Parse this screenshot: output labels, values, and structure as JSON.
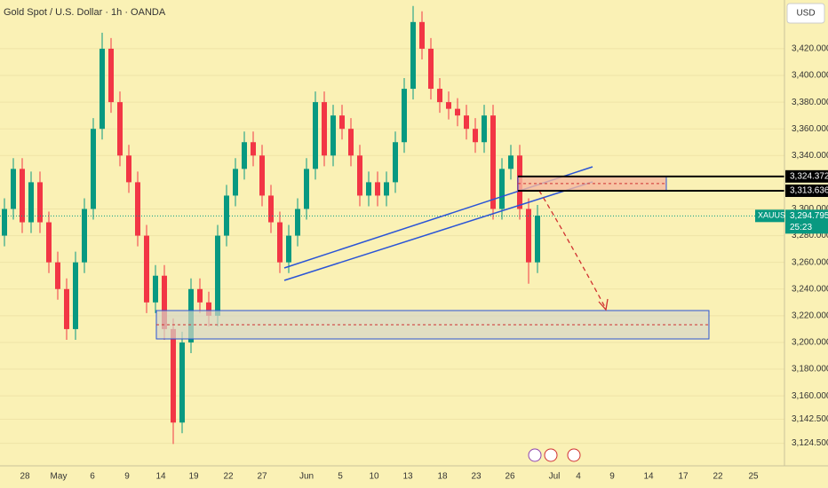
{
  "chart_data": {
    "type": "candlestick",
    "title": "Gold Spot / U.S. Dollar · 1h · OANDA",
    "currency": "USD",
    "symbol": "XAUUSD",
    "countdown": "25:23",
    "last_price": {
      "value": 3294.795,
      "label": "3,294.795"
    },
    "levels": [
      {
        "value": 3324.372,
        "label": "3,324.372"
      },
      {
        "value": 3313.636,
        "label": "3,313.636"
      }
    ],
    "up_color": "#089981",
    "down_color": "#f23645",
    "ylim": [
      3107.6,
      3456.5
    ],
    "yticks": [
      {
        "value": 3124.5,
        "label": "3,124.500"
      },
      {
        "value": 3142.5,
        "label": "3,142.500"
      },
      {
        "value": 3160,
        "label": "3,160.000"
      },
      {
        "value": 3180,
        "label": "3,180.000"
      },
      {
        "value": 3200,
        "label": "3,200.000"
      },
      {
        "value": 3220,
        "label": "3,220.000"
      },
      {
        "value": 3240,
        "label": "3,240.000"
      },
      {
        "value": 3260,
        "label": "3,260.000"
      },
      {
        "value": 3280,
        "label": "3,280.000"
      },
      {
        "value": 3300,
        "label": "3,300.000"
      },
      {
        "value": 3340,
        "label": "3,340.000"
      },
      {
        "value": 3360,
        "label": "3,360.000"
      },
      {
        "value": 3380,
        "label": "3,380.000"
      },
      {
        "value": 3400,
        "label": "3,400.000"
      },
      {
        "value": 3420,
        "label": "3,420.000"
      }
    ],
    "xlabels": [
      "28",
      "May",
      "6",
      "9",
      "14",
      "19",
      "22",
      "27",
      "Jun",
      "5",
      "10",
      "13",
      "18",
      "23",
      "26",
      "Jul",
      "4",
      "9",
      "14",
      "17",
      "22",
      "25"
    ],
    "open": [
      3280,
      3300,
      3330,
      3290,
      3320,
      3290,
      3260,
      3240,
      3210,
      3260,
      3300,
      3360,
      3420,
      3380,
      3340,
      3320,
      3280,
      3230,
      3250,
      3210,
      3140,
      3200,
      3240,
      3230,
      3220,
      3280,
      3310,
      3330,
      3350,
      3340,
      3310,
      3290,
      3260,
      3280,
      3300,
      3330,
      3380,
      3340,
      3370,
      3360,
      3340,
      3310,
      3320,
      3310,
      3320,
      3350,
      3390,
      3440,
      3420,
      3390,
      3380,
      3375,
      3370,
      3360,
      3350,
      3370,
      3300,
      3330,
      3340,
      3300,
      3260
    ],
    "high": [
      3308,
      3338,
      3338,
      3328,
      3328,
      3298,
      3268,
      3248,
      3268,
      3308,
      3368,
      3432,
      3428,
      3388,
      3348,
      3328,
      3288,
      3258,
      3258,
      3218,
      3208,
      3248,
      3248,
      3238,
      3288,
      3318,
      3338,
      3358,
      3358,
      3348,
      3318,
      3298,
      3288,
      3308,
      3338,
      3388,
      3388,
      3378,
      3378,
      3368,
      3348,
      3328,
      3328,
      3328,
      3358,
      3398,
      3452,
      3448,
      3428,
      3398,
      3388,
      3383,
      3378,
      3368,
      3378,
      3378,
      3338,
      3348,
      3348,
      3308,
      3303
    ],
    "low": [
      3272,
      3292,
      3282,
      3282,
      3282,
      3252,
      3232,
      3202,
      3202,
      3252,
      3292,
      3352,
      3372,
      3332,
      3312,
      3272,
      3222,
      3222,
      3202,
      3124,
      3132,
      3192,
      3222,
      3212,
      3212,
      3272,
      3302,
      3322,
      3332,
      3302,
      3282,
      3252,
      3252,
      3272,
      3292,
      3322,
      3332,
      3332,
      3352,
      3332,
      3302,
      3302,
      3302,
      3302,
      3312,
      3342,
      3382,
      3412,
      3382,
      3372,
      3367,
      3362,
      3352,
      3342,
      3342,
      3292,
      3292,
      3322,
      3292,
      3244,
      3252
    ],
    "close": [
      3300,
      3330,
      3290,
      3320,
      3290,
      3260,
      3240,
      3210,
      3260,
      3300,
      3360,
      3420,
      3380,
      3340,
      3320,
      3280,
      3230,
      3250,
      3210,
      3140,
      3200,
      3240,
      3230,
      3220,
      3280,
      3310,
      3330,
      3350,
      3340,
      3310,
      3290,
      3260,
      3280,
      3300,
      3330,
      3380,
      3340,
      3370,
      3360,
      3340,
      3310,
      3320,
      3310,
      3320,
      3350,
      3390,
      3440,
      3420,
      3390,
      3380,
      3375,
      3370,
      3360,
      3350,
      3370,
      3300,
      3330,
      3340,
      3300,
      3260,
      3295
    ]
  }
}
